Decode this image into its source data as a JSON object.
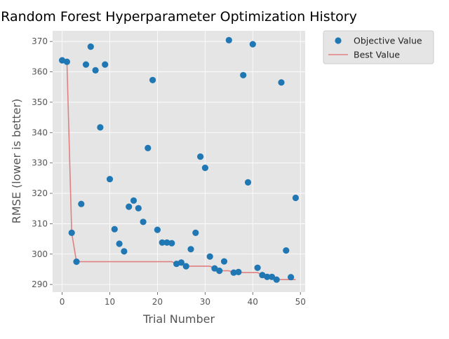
{
  "chart_data": {
    "type": "scatter",
    "title": "Random Forest Hyperparameter Optimization History",
    "xlabel": "Trial Number",
    "ylabel": "RMSE (lower is better)",
    "xlim": [
      -2,
      51
    ],
    "ylim": [
      287.5,
      373.5
    ],
    "xticks": [
      0,
      10,
      20,
      30,
      40,
      50
    ],
    "yticks": [
      290,
      300,
      310,
      320,
      330,
      340,
      350,
      360,
      370
    ],
    "grid": true,
    "legend_position": "outside-right",
    "series": [
      {
        "name": "Objective Value",
        "kind": "scatter",
        "color": "#1f77b4",
        "points": [
          [
            0,
            363.8
          ],
          [
            1,
            363.3
          ],
          [
            2,
            307.0
          ],
          [
            3,
            297.5
          ],
          [
            4,
            316.5
          ],
          [
            5,
            362.4
          ],
          [
            6,
            368.3
          ],
          [
            7,
            360.5
          ],
          [
            8,
            341.7
          ],
          [
            9,
            362.4
          ],
          [
            10,
            324.7
          ],
          [
            11,
            308.2
          ],
          [
            12,
            303.4
          ],
          [
            13,
            300.9
          ],
          [
            14,
            315.6
          ],
          [
            15,
            317.6
          ],
          [
            16,
            315.1
          ],
          [
            17,
            310.6
          ],
          [
            18,
            334.9
          ],
          [
            19,
            357.3
          ],
          [
            20,
            308.0
          ],
          [
            21,
            303.8
          ],
          [
            22,
            303.8
          ],
          [
            23,
            303.6
          ],
          [
            24,
            296.8
          ],
          [
            25,
            297.2
          ],
          [
            26,
            296.0
          ],
          [
            27,
            301.6
          ],
          [
            28,
            307.0
          ],
          [
            29,
            332.1
          ],
          [
            30,
            328.4
          ],
          [
            31,
            299.2
          ],
          [
            32,
            295.3
          ],
          [
            33,
            294.5
          ],
          [
            34,
            297.6
          ],
          [
            35,
            370.4
          ],
          [
            36,
            293.9
          ],
          [
            37,
            294.1
          ],
          [
            38,
            358.9
          ],
          [
            39,
            323.6
          ],
          [
            40,
            369.1
          ],
          [
            41,
            295.5
          ],
          [
            42,
            293.1
          ],
          [
            43,
            292.5
          ],
          [
            44,
            292.5
          ],
          [
            45,
            291.6
          ],
          [
            46,
            356.5
          ],
          [
            47,
            301.2
          ],
          [
            48,
            292.4
          ],
          [
            49,
            318.5
          ]
        ]
      },
      {
        "name": "Best Value",
        "kind": "line",
        "color": "#e08080",
        "points": [
          [
            0,
            363.8
          ],
          [
            1,
            363.3
          ],
          [
            2,
            307.0
          ],
          [
            3,
            297.5
          ],
          [
            23,
            297.5
          ],
          [
            24,
            296.8
          ],
          [
            25,
            296.8
          ],
          [
            26,
            296.0
          ],
          [
            31,
            296.0
          ],
          [
            32,
            295.3
          ],
          [
            33,
            294.5
          ],
          [
            35,
            294.5
          ],
          [
            36,
            293.9
          ],
          [
            41,
            293.9
          ],
          [
            42,
            293.1
          ],
          [
            43,
            292.5
          ],
          [
            44,
            292.5
          ],
          [
            45,
            291.6
          ],
          [
            49,
            291.6
          ]
        ]
      }
    ]
  }
}
